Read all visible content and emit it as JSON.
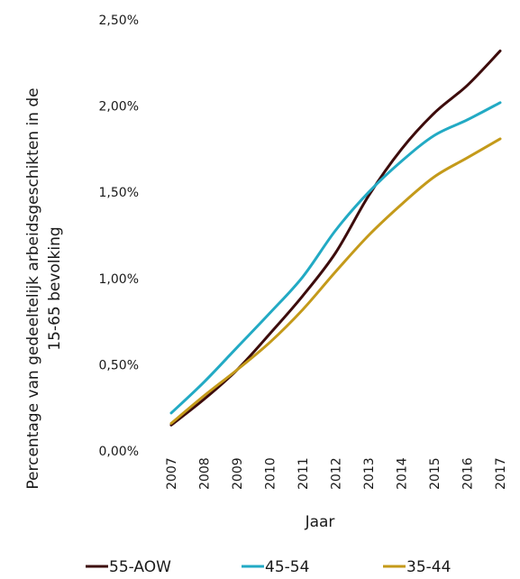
{
  "chart_data": {
    "type": "line",
    "title": "",
    "xlabel": "Jaar",
    "ylabel_line1": "Percentage van gedeeltelijk arbeidsgeschikten in de",
    "ylabel_line2": "15-65 bevolking",
    "ylim": [
      0,
      0.025
    ],
    "y_ticks": [
      0,
      0.005,
      0.01,
      0.015,
      0.02,
      0.025
    ],
    "y_tick_labels": [
      "0,00%",
      "0,50%",
      "1,00%",
      "1,50%",
      "2,00%",
      "2,50%"
    ],
    "categories": [
      "2007",
      "2008",
      "2009",
      "2010",
      "2011",
      "2012",
      "2013",
      "2014",
      "2015",
      "2016",
      "2017"
    ],
    "grid": false,
    "legend_position": "bottom",
    "series": [
      {
        "name": "55-AOW",
        "color": "#3d0c0c",
        "values": [
          0.0015,
          0.003,
          0.0047,
          0.0068,
          0.009,
          0.0115,
          0.0148,
          0.0175,
          0.0196,
          0.0212,
          0.0232
        ]
      },
      {
        "name": "45-54",
        "color": "#22aac4",
        "values": [
          0.0022,
          0.004,
          0.006,
          0.008,
          0.0101,
          0.0128,
          0.015,
          0.0168,
          0.0183,
          0.0192,
          0.0202
        ]
      },
      {
        "name": "35-44",
        "color": "#c49a1a",
        "values": [
          0.0016,
          0.0032,
          0.0047,
          0.0063,
          0.0082,
          0.0104,
          0.0125,
          0.0143,
          0.0159,
          0.017,
          0.0181
        ]
      }
    ]
  }
}
